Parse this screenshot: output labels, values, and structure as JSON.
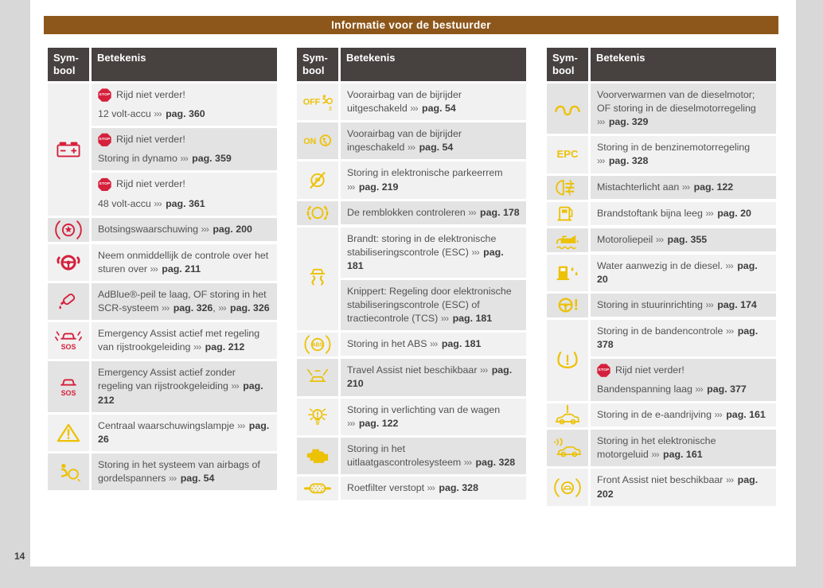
{
  "page": {
    "banner_title": "Informatie voor de bestuurder",
    "page_number": "14"
  },
  "table_header": {
    "symbol": "Sym- bool",
    "meaning": "Betekenis"
  },
  "colors": {
    "banner": "#8d571b",
    "header_bg": "#474140",
    "row_light": "#f1f1f1",
    "row_dark": "#e3e3e3",
    "red": "#d5203c",
    "yellow": "#ecc106",
    "text": "#525254"
  },
  "stop_label": "STOP",
  "legend_columns": [
    {
      "groups": [
        {
          "icon": "battery-icon",
          "color": "red",
          "subrows": [
            {
              "shade": "a",
              "lines": [
                [
                  {
                    "stop": "Rijd niet verder!"
                  }
                ],
                [
                  {
                    "t": "12 volt-accu"
                  },
                  {
                    "ref": "pag. 360"
                  }
                ]
              ]
            },
            {
              "shade": "b",
              "lines": [
                [
                  {
                    "stop": "Rijd niet verder!"
                  }
                ],
                [
                  {
                    "t": "Storing in dynamo"
                  },
                  {
                    "ref": "pag. 359"
                  }
                ]
              ]
            },
            {
              "shade": "a",
              "lines": [
                [
                  {
                    "stop": "Rijd niet verder!"
                  }
                ],
                [
                  {
                    "t": "48 volt-accu"
                  },
                  {
                    "ref": "pag. 361"
                  }
                ]
              ]
            }
          ]
        },
        {
          "icon": "collision-warning-icon",
          "color": "red",
          "subrows": [
            {
              "shade": "b",
              "lines": [
                [
                  {
                    "t": "Botsingswaarschuwing"
                  },
                  {
                    "ref": "pag. 200"
                  }
                ]
              ]
            }
          ]
        },
        {
          "icon": "hands-on-steering-wheel-icon",
          "color": "red",
          "subrows": [
            {
              "shade": "a",
              "lines": [
                [
                  {
                    "t": "Neem onmiddellijk de controle over het sturen over"
                  },
                  {
                    "ref": "pag. 211"
                  }
                ]
              ]
            }
          ]
        },
        {
          "icon": "adblue-refill-icon",
          "color": "red",
          "subrows": [
            {
              "shade": "b",
              "lines": [
                [
                  {
                    "t": "AdBlue®-peil te laag, OF storing in het SCR-systeem"
                  },
                  {
                    "ref": "pag. 326"
                  },
                  {
                    "t": ","
                  },
                  {
                    "ref": "pag. 326"
                  }
                ]
              ]
            }
          ]
        },
        {
          "icon": "emergency-assist-lane-icon",
          "color": "red",
          "subrows": [
            {
              "shade": "a",
              "lines": [
                [
                  {
                    "t": "Emergency Assist actief met regeling van rijstrookgeleiding"
                  },
                  {
                    "ref": "pag. 212"
                  }
                ]
              ]
            }
          ]
        },
        {
          "icon": "emergency-assist-icon",
          "color": "red",
          "subrows": [
            {
              "shade": "b",
              "lines": [
                [
                  {
                    "t": "Emergency Assist actief zonder regeling van rijstrookgeleiding"
                  },
                  {
                    "ref": "pag. 212"
                  }
                ]
              ]
            }
          ]
        },
        {
          "icon": "warning-triangle-icon",
          "color": "yellow",
          "subrows": [
            {
              "shade": "a",
              "lines": [
                [
                  {
                    "t": "Centraal waarschuwingslampje"
                  },
                  {
                    "ref": "pag. 26"
                  }
                ]
              ]
            }
          ]
        },
        {
          "icon": "airbag-icon",
          "color": "yellow",
          "subrows": [
            {
              "shade": "b",
              "lines": [
                [
                  {
                    "t": "Storing in het systeem van airbags of gordelspanners"
                  },
                  {
                    "ref": "pag. 54"
                  }
                ]
              ]
            }
          ]
        }
      ]
    },
    {
      "groups": [
        {
          "icon": "airbag-off-icon",
          "color": "yellow",
          "subrows": [
            {
              "shade": "a",
              "lines": [
                [
                  {
                    "t": "Voorairbag van de bijrijder uitgeschakeld"
                  },
                  {
                    "ref": "pag. 54"
                  }
                ]
              ]
            }
          ]
        },
        {
          "icon": "airbag-on-icon",
          "color": "yellow",
          "subrows": [
            {
              "shade": "b",
              "lines": [
                [
                  {
                    "t": "Voorairbag van de bijrijder ingeschakeld"
                  },
                  {
                    "ref": "pag. 54"
                  }
                ]
              ]
            }
          ]
        },
        {
          "icon": "parking-brake-fault-icon",
          "color": "yellow",
          "subrows": [
            {
              "shade": "a",
              "lines": [
                [
                  {
                    "t": "Storing in elektronische parkeerrem"
                  },
                  {
                    "ref": "pag. 219"
                  }
                ]
              ]
            }
          ]
        },
        {
          "icon": "brake-pads-icon",
          "color": "yellow",
          "subrows": [
            {
              "shade": "b",
              "lines": [
                [
                  {
                    "t": "De remblokken controleren"
                  },
                  {
                    "ref": "pag. 178"
                  }
                ]
              ]
            }
          ]
        },
        {
          "icon": "esc-icon",
          "color": "yellow",
          "subrows": [
            {
              "shade": "a",
              "lines": [
                [
                  {
                    "t": "Brandt: storing in de elektronische stabiliseringscontrole (ESC)"
                  },
                  {
                    "ref": "pag. 181"
                  }
                ]
              ]
            },
            {
              "shade": "b",
              "lines": [
                [
                  {
                    "t": "Knippert: Regeling door elektronische stabiliseringscontrole (ESC) of tractiecontrole (TCS)"
                  },
                  {
                    "ref": "pag. 181"
                  }
                ]
              ]
            }
          ]
        },
        {
          "icon": "abs-icon",
          "color": "yellow",
          "subrows": [
            {
              "shade": "a",
              "lines": [
                [
                  {
                    "t": "Storing in het ABS"
                  },
                  {
                    "ref": "pag. 181"
                  }
                ]
              ]
            }
          ]
        },
        {
          "icon": "travel-assist-icon",
          "color": "yellow",
          "subrows": [
            {
              "shade": "b",
              "lines": [
                [
                  {
                    "t": "Travel Assist niet beschikbaar"
                  },
                  {
                    "ref": "pag. 210"
                  }
                ]
              ]
            }
          ]
        },
        {
          "icon": "light-fault-icon",
          "color": "yellow",
          "subrows": [
            {
              "shade": "a",
              "lines": [
                [
                  {
                    "t": "Storing in verlichting van de wagen"
                  },
                  {
                    "ref": "pag. 122"
                  }
                ]
              ]
            }
          ]
        },
        {
          "icon": "check-engine-icon",
          "color": "yellow",
          "subrows": [
            {
              "shade": "b",
              "lines": [
                [
                  {
                    "t": "Storing in het uitlaatgascontrolesysteem"
                  },
                  {
                    "ref": "pag. 328"
                  }
                ]
              ]
            }
          ]
        },
        {
          "icon": "particulate-filter-icon",
          "color": "yellow",
          "subrows": [
            {
              "shade": "a",
              "lines": [
                [
                  {
                    "t": "Roetfilter verstopt"
                  },
                  {
                    "ref": "pag. 328"
                  }
                ]
              ]
            }
          ]
        }
      ]
    },
    {
      "groups": [
        {
          "icon": "glow-plug-icon",
          "color": "yellow",
          "subrows": [
            {
              "shade": "b",
              "lines": [
                [
                  {
                    "t": "Voorverwarmen van de dieselmotor; OF storing in de dieselmotorregeling"
                  },
                  {
                    "ref": "pag. 329"
                  }
                ]
              ]
            }
          ]
        },
        {
          "icon": "epc-icon",
          "color": "yellow",
          "subrows": [
            {
              "shade": "a",
              "lines": [
                [
                  {
                    "t": "Storing in de benzinemotorregeling"
                  },
                  {
                    "ref": "pag. 328"
                  }
                ]
              ]
            }
          ]
        },
        {
          "icon": "rear-fog-light-icon",
          "color": "yellow",
          "subrows": [
            {
              "shade": "b",
              "lines": [
                [
                  {
                    "t": "Mistachterlicht aan"
                  },
                  {
                    "ref": "pag. 122"
                  }
                ]
              ]
            }
          ]
        },
        {
          "icon": "fuel-pump-icon",
          "color": "yellow",
          "subrows": [
            {
              "shade": "a",
              "lines": [
                [
                  {
                    "t": "Brandstoftank bijna leeg"
                  },
                  {
                    "ref": "pag. 20"
                  }
                ]
              ]
            }
          ]
        },
        {
          "icon": "oil-can-icon",
          "color": "yellow",
          "subrows": [
            {
              "shade": "b",
              "lines": [
                [
                  {
                    "t": "Motoroliepeil"
                  },
                  {
                    "ref": "pag. 355"
                  }
                ]
              ]
            }
          ]
        },
        {
          "icon": "water-in-fuel-icon",
          "color": "yellow",
          "subrows": [
            {
              "shade": "a",
              "lines": [
                [
                  {
                    "t": "Water aanwezig in de diesel."
                  },
                  {
                    "ref": "pag. 20"
                  }
                ]
              ]
            }
          ]
        },
        {
          "icon": "steering-fault-icon",
          "color": "yellow",
          "subrows": [
            {
              "shade": "b",
              "lines": [
                [
                  {
                    "t": "Storing in stuurinrichting"
                  },
                  {
                    "ref": "pag. 174"
                  }
                ]
              ]
            }
          ]
        },
        {
          "icon": "tire-pressure-icon",
          "color": "yellow",
          "subrows": [
            {
              "shade": "a",
              "lines": [
                [
                  {
                    "t": "Storing in de bandencontrole"
                  },
                  {
                    "ref": "pag. 378"
                  }
                ]
              ]
            },
            {
              "shade": "b",
              "lines": [
                [
                  {
                    "stop": "Rijd niet verder!"
                  }
                ],
                [
                  {
                    "t": "Bandenspanning laag"
                  },
                  {
                    "ref": "pag. 377"
                  }
                ]
              ]
            }
          ]
        },
        {
          "icon": "e-drive-fault-icon",
          "color": "yellow",
          "subrows": [
            {
              "shade": "a",
              "lines": [
                [
                  {
                    "t": "Storing in de e-aandrijving"
                  },
                  {
                    "ref": "pag. 161"
                  }
                ]
              ]
            }
          ]
        },
        {
          "icon": "engine-sound-icon",
          "color": "yellow",
          "subrows": [
            {
              "shade": "b",
              "lines": [
                [
                  {
                    "t": "Storing in het elektronische motorgeluid"
                  },
                  {
                    "ref": "pag. 161"
                  }
                ]
              ]
            }
          ]
        },
        {
          "icon": "front-assist-icon",
          "color": "yellow",
          "subrows": [
            {
              "shade": "a",
              "lines": [
                [
                  {
                    "t": "Front Assist niet beschikbaar"
                  },
                  {
                    "ref": "pag. 202"
                  }
                ]
              ]
            }
          ]
        }
      ]
    }
  ]
}
